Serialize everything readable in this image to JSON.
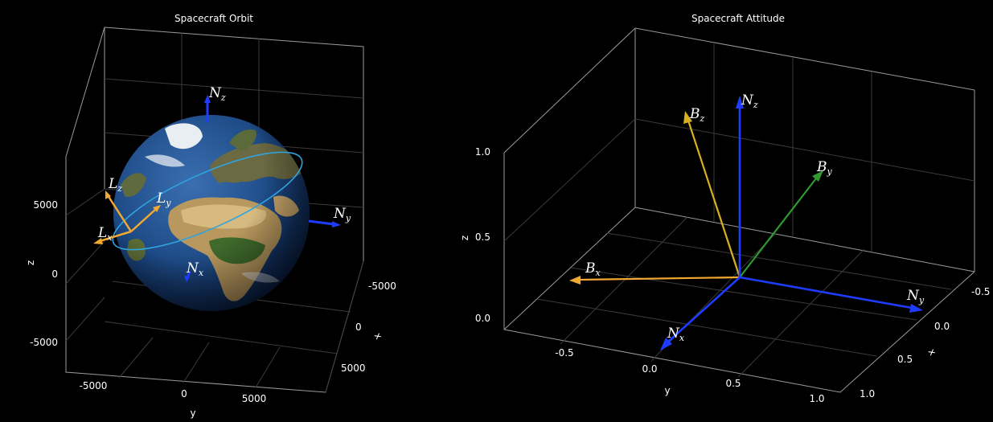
{
  "chart_data": [
    {
      "type": "3d-scene",
      "title": "Spacecraft Orbit",
      "xlabel": "x",
      "ylabel": "y",
      "zlabel": "z",
      "xticks": [
        "-5000",
        "0",
        "5000"
      ],
      "yticks": [
        "-5000",
        "0",
        "5000"
      ],
      "zticks": [
        "5000",
        "0",
        "-5000"
      ],
      "grid": true,
      "objects": [
        "Earth sphere (textured)",
        "orbit ellipse"
      ],
      "vectors": [
        {
          "id": "Nz",
          "base": "N",
          "sub": "z",
          "color": "#1e3cff"
        },
        {
          "id": "Ny",
          "base": "N",
          "sub": "y",
          "color": "#1e3cff"
        },
        {
          "id": "Nx",
          "base": "N",
          "sub": "x",
          "color": "#1e3cff"
        },
        {
          "id": "Lz",
          "base": "L",
          "sub": "z",
          "color": "#f0a830"
        },
        {
          "id": "Ly",
          "base": "L",
          "sub": "y",
          "color": "#f0a830"
        },
        {
          "id": "Lx",
          "base": "L",
          "sub": "x",
          "color": "#f0a830"
        }
      ]
    },
    {
      "type": "3d-scene",
      "title": "Spacecraft Attitude",
      "xlabel": "x",
      "ylabel": "y",
      "zlabel": "z",
      "xticks": [
        "-0.5",
        "0.0",
        "0.5",
        "1.0"
      ],
      "yticks": [
        "-0.5",
        "0.0",
        "0.5",
        "1.0"
      ],
      "zticks": [
        "1.0",
        "0.5",
        "0.0"
      ],
      "grid": true,
      "vectors": [
        {
          "id": "Nz",
          "base": "N",
          "sub": "z",
          "color": "#1e3cff"
        },
        {
          "id": "Ny",
          "base": "N",
          "sub": "y",
          "color": "#1e3cff"
        },
        {
          "id": "Nx",
          "base": "N",
          "sub": "x",
          "color": "#1e3cff"
        },
        {
          "id": "Bz",
          "base": "B",
          "sub": "z",
          "color": "#d8b020"
        },
        {
          "id": "By",
          "base": "B",
          "sub": "y",
          "color": "#2f9a2f"
        },
        {
          "id": "Bx",
          "base": "B",
          "sub": "x",
          "color": "#f0a830"
        }
      ]
    }
  ]
}
